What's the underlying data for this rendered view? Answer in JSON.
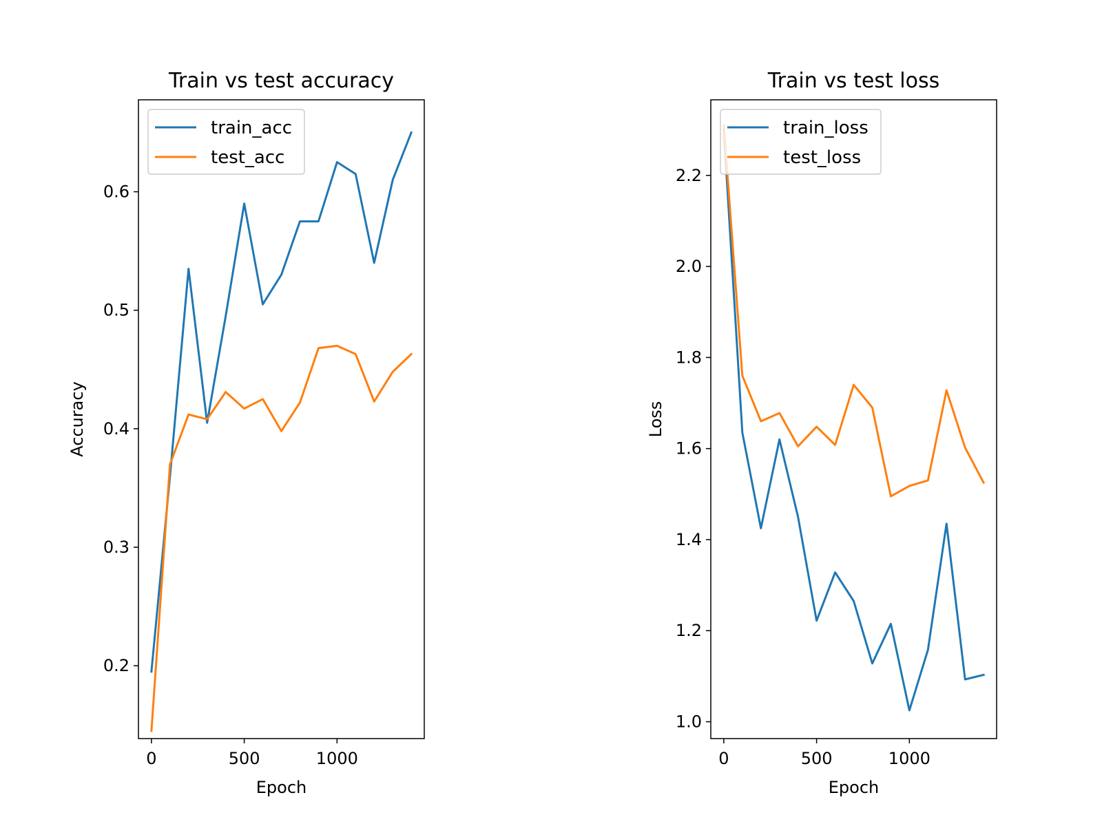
{
  "chart_data": [
    {
      "type": "line",
      "title": "Train vs test accuracy",
      "xlabel": "Epoch",
      "ylabel": "Accuracy",
      "xlim": [
        -70,
        1470
      ],
      "ylim": [
        0.1385,
        0.6776
      ],
      "xticks": [
        0,
        500,
        1000
      ],
      "yticks": [
        0.2,
        0.3,
        0.4,
        0.5,
        0.6
      ],
      "x": [
        0,
        100,
        200,
        300,
        400,
        500,
        600,
        700,
        800,
        900,
        1000,
        1100,
        1200,
        1300,
        1400
      ],
      "series": [
        {
          "name": "train_acc",
          "color": "#1f77b4",
          "values": [
            0.195,
            0.36,
            0.535,
            0.405,
            0.495,
            0.59,
            0.505,
            0.53,
            0.575,
            0.575,
            0.625,
            0.615,
            0.54,
            0.61,
            0.65
          ]
        },
        {
          "name": "test_acc",
          "color": "#ff7f0e",
          "values": [
            0.145,
            0.37,
            0.412,
            0.408,
            0.431,
            0.417,
            0.425,
            0.398,
            0.422,
            0.468,
            0.47,
            0.463,
            0.423,
            0.448,
            0.463
          ]
        }
      ],
      "legend": "upper left"
    },
    {
      "type": "line",
      "title": "Train vs test loss",
      "xlabel": "Epoch",
      "ylabel": "Loss",
      "xlim": [
        -70,
        1470
      ],
      "ylim": [
        0.963,
        2.366
      ],
      "xticks": [
        0,
        500,
        1000
      ],
      "yticks": [
        1.0,
        1.2,
        1.4,
        1.6,
        1.8,
        2.0,
        2.2
      ],
      "x": [
        0,
        100,
        200,
        300,
        400,
        500,
        600,
        700,
        800,
        900,
        1000,
        1100,
        1200,
        1300,
        1400
      ],
      "series": [
        {
          "name": "train_loss",
          "color": "#1f77b4",
          "values": [
            2.3,
            1.635,
            1.425,
            1.62,
            1.45,
            1.222,
            1.328,
            1.265,
            1.128,
            1.215,
            1.025,
            1.158,
            1.435,
            1.093,
            1.103
          ]
        },
        {
          "name": "test_loss",
          "color": "#ff7f0e",
          "values": [
            2.31,
            1.76,
            1.66,
            1.678,
            1.605,
            1.648,
            1.608,
            1.74,
            1.69,
            1.495,
            1.518,
            1.53,
            1.728,
            1.602,
            1.525
          ]
        }
      ],
      "legend": "upper left"
    }
  ]
}
